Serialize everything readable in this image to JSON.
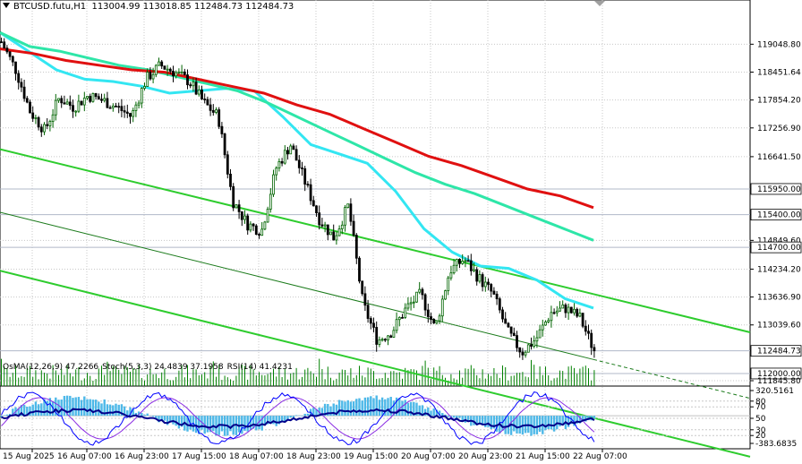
{
  "header": {
    "symbol": "BTCUSD.futu,H1",
    "ohlc": "113004.99 113018.85 112484.73 112484.73"
  },
  "indicators": {
    "osma": "OsMA(12,26,9) 47.2266",
    "stoch": "Stoch(5,3,3) 24.4839 37.1958",
    "rsi": "RSI(14) 41.4231"
  },
  "colors": {
    "bull": "#006400",
    "bear": "#000000",
    "ema_fast": "#33e6f2",
    "ema_mid": "#2ee6a8",
    "ema_slow": "#e01010",
    "channel": "#2ecc2e",
    "grid": "#c8c8c8",
    "hline": "#b0b8c8",
    "volume": "#008000",
    "osma": "#4db8e8",
    "stoch_main": "#0000ff",
    "rsi": "#00008b",
    "macd_signal": "#8a2be2"
  },
  "chart_data": {
    "type": "candlestick",
    "title": "BTCUSD.futu,H1",
    "timeframe": "H1",
    "last_price": 112484.73,
    "price_axis_labels": [
      119048.8,
      118451.64,
      117854.2,
      117256.9,
      116641.5,
      115950.0,
      115400.0,
      114849.6,
      114700.0,
      114234.2,
      113636.9,
      113039.6,
      112484.73,
      112000.0,
      111845.8
    ],
    "price_axis_label_text": [
      "119048.80",
      "118451.64",
      "117854.20",
      "117256.90",
      "116641.50",
      "115950.00",
      "115400.00",
      "114849.60",
      "114700.00",
      "114234.20",
      "113636.90",
      "113039.60",
      "112484.73",
      "112000.00",
      "111845.80"
    ],
    "ylim": [
      111845.8,
      119650
    ],
    "highlighted_levels": [
      115950.0,
      115400.0,
      114700.0,
      112000.0
    ],
    "time_labels": [
      "15 Aug 2025",
      "16 Aug 07:00",
      "16 Aug 23:00",
      "17 Aug 15:00",
      "18 Aug 07:00",
      "18 Aug 23:00",
      "19 Aug 15:00",
      "20 Aug 07:00",
      "20 Aug 23:00",
      "21 Aug 15:00",
      "22 Aug 07:00"
    ],
    "price_path": [
      119100,
      118500,
      117600,
      117200,
      117900,
      117700,
      117950,
      117850,
      117700,
      117500,
      118300,
      118600,
      118450,
      118250,
      117800,
      117500,
      115700,
      115200,
      115050,
      116400,
      116900,
      116100,
      115300,
      114900,
      115600,
      113500,
      112700,
      112900,
      113400,
      113700,
      112950,
      114200,
      114450,
      114050,
      113700,
      112900,
      112450,
      112750,
      113300,
      113400,
      113200,
      112484.73
    ],
    "series": [
      {
        "name": "EMA fast",
        "color": "#33e6f2",
        "values": [
          119300,
          118900,
          118500,
          118300,
          118250,
          118150,
          118000,
          118050,
          118100,
          118050,
          117500,
          116900,
          116700,
          116500,
          115900,
          115100,
          114600,
          114300,
          114250,
          114000,
          113600,
          113400
        ]
      },
      {
        "name": "EMA mid",
        "color": "#2ee6a8",
        "values": [
          119300,
          119000,
          118900,
          118750,
          118600,
          118500,
          118350,
          118200,
          118050,
          117800,
          117500,
          117200,
          116900,
          116600,
          116300,
          116050,
          115850,
          115600,
          115350,
          115100,
          114850
        ]
      },
      {
        "name": "EMA slow",
        "color": "#e01010",
        "values": [
          118950,
          118850,
          118700,
          118600,
          118500,
          118450,
          118300,
          118150,
          118000,
          117750,
          117550,
          117250,
          116950,
          116650,
          116450,
          116200,
          115950,
          115800,
          115550
        ]
      }
    ],
    "channel_lines": [
      {
        "name": "upper",
        "from": [
          0,
          116800
        ],
        "to": [
          41,
          113700
        ]
      },
      {
        "name": "middle",
        "from": [
          0,
          115450
        ],
        "to": [
          41,
          112300
        ]
      },
      {
        "name": "lower",
        "from": [
          0,
          114200
        ],
        "to": [
          41,
          111050
        ]
      }
    ],
    "indicator_panel": {
      "osma_value": 47.2266,
      "stoch_main": 24.4839,
      "stoch_signal": 37.1958,
      "rsi": 41.4231,
      "levels": [
        80,
        70,
        50,
        30,
        20
      ],
      "axis_labels": [
        "320.5161",
        "80",
        "70",
        "50",
        "30",
        "20",
        "-383.6835"
      ]
    }
  }
}
